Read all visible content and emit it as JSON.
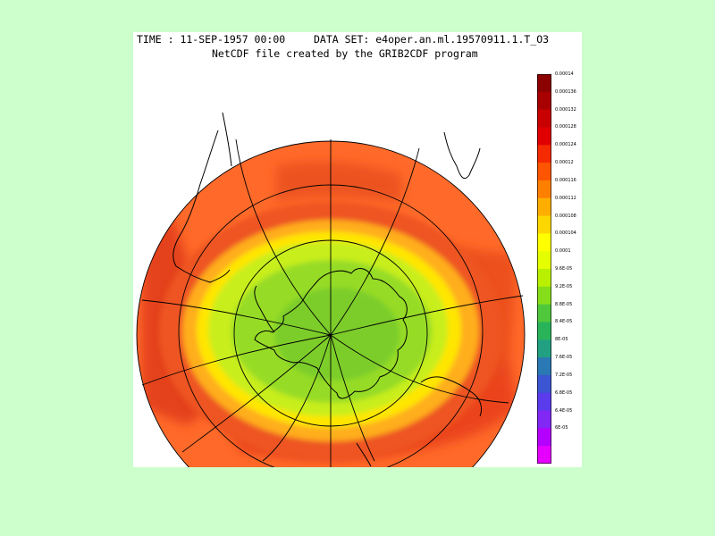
{
  "header": {
    "time_label": "TIME : 11-SEP-1957 00:00",
    "dataset_label": "DATA SET: e4oper.an.ml.19570911.1.T_O3",
    "subtitle": "NetCDF file created by the GRIB2CDF program"
  },
  "colorbar": {
    "labels": [
      "0.00014",
      "0.000136",
      "0.000132",
      "0.000128",
      "0.000124",
      "0.00012",
      "0.000116",
      "0.000112",
      "0.000108",
      "0.000104",
      "0.0001",
      "9.6E-05",
      "9.2E-05",
      "8.8E-05",
      "8.4E-05",
      "8E-05",
      "7.6E-05",
      "7.2E-05",
      "6.8E-05",
      "6.4E-05",
      "6E-05"
    ],
    "colors": [
      "#8b0000",
      "#a80000",
      "#c80000",
      "#e00000",
      "#f52a00",
      "#ff5500",
      "#ff8000",
      "#ffae00",
      "#ffd700",
      "#ffff00",
      "#e6ff00",
      "#b8f000",
      "#86dd1a",
      "#50c83c",
      "#2ab45a",
      "#22a082",
      "#2a78b4",
      "#3c55d2",
      "#5a3ced",
      "#8228f5",
      "#b400ff",
      "#e600ff"
    ]
  },
  "map": {
    "projection": "orthographic south polar",
    "field": "O3",
    "background_color": "#ff6a2a",
    "ring_colors": [
      "#ee5522",
      "#ffae1e",
      "#ffe600",
      "#c8ee1e",
      "#96dc28",
      "#7ccd2a"
    ]
  }
}
